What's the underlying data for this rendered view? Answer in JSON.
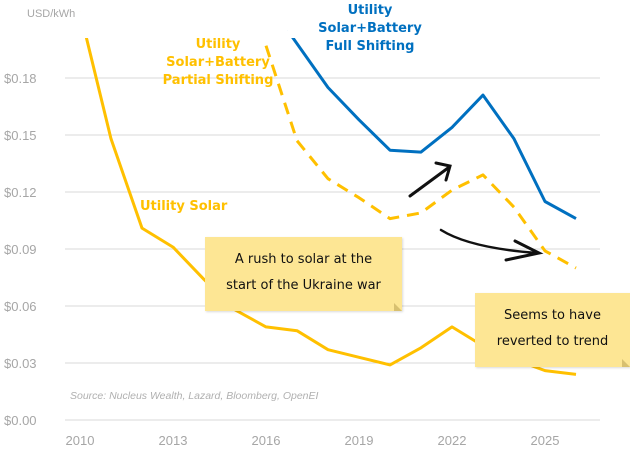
{
  "chart_data": {
    "type": "line",
    "ylabel": "USD/kWh",
    "ylim": [
      0,
      0.22
    ],
    "xlim": [
      2009.5,
      2026.7
    ],
    "yticks": [
      "$0.00",
      "$0.03",
      "$0.06",
      "$0.09",
      "$0.12",
      "$0.15",
      "$0.18"
    ],
    "ytick_values": [
      0,
      0.03,
      0.06,
      0.09,
      0.12,
      0.15,
      0.18
    ],
    "xticks": [
      "2010",
      "2013",
      "2016",
      "2019",
      "2022",
      "2025"
    ],
    "xtick_values": [
      2010,
      2013,
      2016,
      2019,
      2022,
      2025
    ],
    "grid": true,
    "series": [
      {
        "name": "Utility Solar",
        "color": "#ffc000",
        "dash": false,
        "x": [
          2010,
          2011,
          2012,
          2013,
          2014,
          2015,
          2016,
          2017,
          2018,
          2019,
          2020,
          2021,
          2022,
          2023,
          2024,
          2025,
          2026
        ],
        "values": [
          0.215,
          0.148,
          0.101,
          0.091,
          0.074,
          0.058,
          0.049,
          0.047,
          0.037,
          0.033,
          0.029,
          0.038,
          0.049,
          0.039,
          0.032,
          0.026,
          0.024
        ]
      },
      {
        "name": "Utility Solar+Battery Partial Shifting",
        "color": "#ffc000",
        "dash": true,
        "x": [
          2016,
          2017,
          2018,
          2019,
          2020,
          2021,
          2022,
          2023,
          2024,
          2025,
          2026
        ],
        "values": [
          0.197,
          0.147,
          0.127,
          0.117,
          0.106,
          0.109,
          0.121,
          0.129,
          0.112,
          0.089,
          0.08
        ]
      },
      {
        "name": "Utility Solar+Battery Full Shifting",
        "color": "#0070c0",
        "dash": false,
        "x": [
          2016.7,
          2018,
          2019,
          2020,
          2021,
          2022,
          2023,
          2024,
          2025,
          2026
        ],
        "values": [
          0.205,
          0.175,
          0.158,
          0.142,
          0.141,
          0.154,
          0.171,
          0.148,
          0.115,
          0.106
        ]
      }
    ],
    "series_labels": {
      "solar": "Utility Solar",
      "partial": [
        "Utility",
        "Solar+Battery",
        "Partial Shifting"
      ],
      "full": [
        "Utility",
        "Solar+Battery",
        "Full Shifting"
      ]
    },
    "annotations": {
      "note1": [
        "A rush to solar at the",
        "start of the Ukraine war"
      ],
      "note2": [
        "Seems to have",
        "reverted to trend"
      ]
    },
    "source": "Source: Nucleus Wealth, Lazard, Bloomberg, OpenEI"
  }
}
